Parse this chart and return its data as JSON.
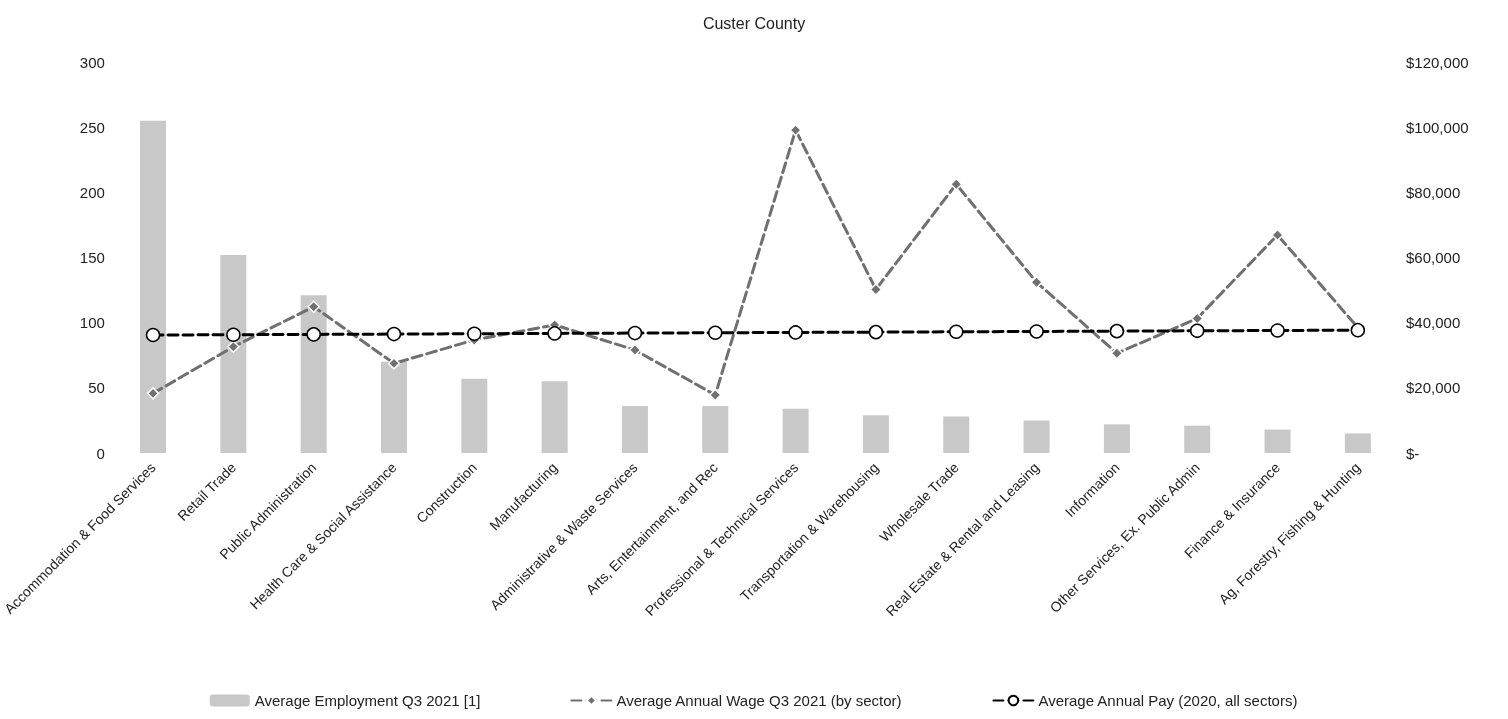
{
  "chart_data": {
    "type": "bar",
    "title": "Custer County",
    "categories": [
      "Accommodation & Food Services",
      "Retail Trade",
      "Public Administration",
      "Health Care & Social Assistance",
      "Construction",
      "Manufacturing",
      "Administrative & Waste Services",
      "Arts, Entertainment, and Rec",
      "Professional & Technical Services",
      "Transportation & Warehousing",
      "Wholesale Trade",
      "Real Estate & Rental and Leasing",
      "Information",
      "Other Services, Ex. Public Admin",
      "Finance & Insurance",
      "Ag, Forestry, Fishing & Hunting"
    ],
    "series": [
      {
        "name": "Average Employment Q3 2021 [1]",
        "color": "#c8c8c8",
        "values": [
          255,
          152,
          121,
          70,
          57,
          55,
          36,
          36,
          34,
          29,
          28,
          25,
          22,
          21,
          18,
          15
        ]
      },
      {
        "name": "Average Annual Wage Q3 2021 (by sector)",
        "type": "line",
        "axis": "y2",
        "color": "#707070",
        "marker": "diamond",
        "line_style": "dashed",
        "values": [
          18300,
          32600,
          44900,
          27500,
          34700,
          39300,
          31600,
          17800,
          99100,
          50200,
          82500,
          52400,
          30600,
          41300,
          66900,
          38500
        ]
      },
      {
        "name": "Average Annual Pay (2020, all sectors)",
        "type": "line",
        "axis": "y2",
        "color": "#000000",
        "marker": "circle",
        "line_style": "dashed",
        "values": [
          36200,
          36300,
          36400,
          36500,
          36600,
          36700,
          36800,
          36900,
          37000,
          37100,
          37200,
          37300,
          37400,
          37500,
          37600,
          37700
        ]
      }
    ],
    "ylim": [
      0,
      300
    ],
    "yticks": [
      0,
      50,
      100,
      150,
      200,
      250,
      300
    ],
    "y2lim": [
      0,
      120000
    ],
    "y2ticks": [
      {
        "value": 0,
        "label": "$-"
      },
      {
        "value": 20000,
        "label": "$20,000"
      },
      {
        "value": 40000,
        "label": "$40,000"
      },
      {
        "value": 60000,
        "label": "$60,000"
      },
      {
        "value": 80000,
        "label": "$80,000"
      },
      {
        "value": 100000,
        "label": "$100,000"
      },
      {
        "value": 120000,
        "label": "$120,000"
      }
    ],
    "grid": false,
    "legend": "bottom"
  }
}
